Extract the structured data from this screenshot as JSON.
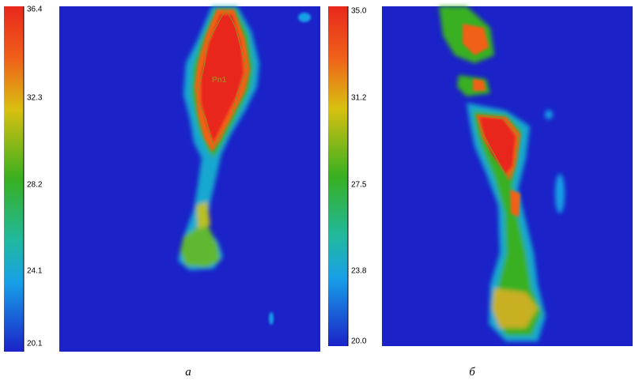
{
  "panels": [
    {
      "scale_labels": [
        "36.4",
        "32.3",
        "28.2",
        "24.1",
        "20.1"
      ],
      "region_label": "Pn1",
      "caption": "а"
    },
    {
      "scale_labels": [
        "35.0",
        "31.2",
        "27.5",
        "23.8",
        "20.0"
      ],
      "caption": "б"
    }
  ]
}
